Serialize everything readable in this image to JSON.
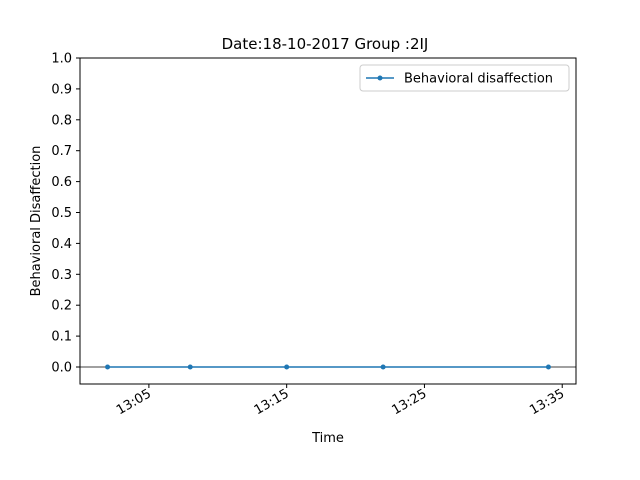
{
  "chart_data": {
    "type": "line",
    "title": "Date:18-10-2017 Group :2IJ",
    "xlabel": "Time",
    "ylabel": "Behavioral Disaffection",
    "x": [
      "13:02",
      "13:08",
      "13:15",
      "13:22",
      "13:34"
    ],
    "series": [
      {
        "name": "Behavioral disaffection",
        "values": [
          0,
          0,
          0,
          0,
          0
        ]
      }
    ],
    "ylim": [
      -0.055,
      1.0
    ],
    "xlim": [
      "13:00",
      "13:36"
    ],
    "y_ticks": [
      0.0,
      0.1,
      0.2,
      0.3,
      0.4,
      0.5,
      0.6,
      0.7,
      0.8,
      0.9,
      1.0
    ],
    "y_tick_labels": [
      "0.0",
      "0.1",
      "0.2",
      "0.3",
      "0.4",
      "0.5",
      "0.6",
      "0.7",
      "0.8",
      "0.9",
      "1.0"
    ],
    "x_ticks": [
      "13:05",
      "13:15",
      "13:25",
      "13:35"
    ],
    "horizontal_reference_line": 0,
    "grid": false,
    "legend_position": "top-right",
    "colors": {
      "series": "#1f77b4",
      "reference_line": "#000000"
    }
  }
}
